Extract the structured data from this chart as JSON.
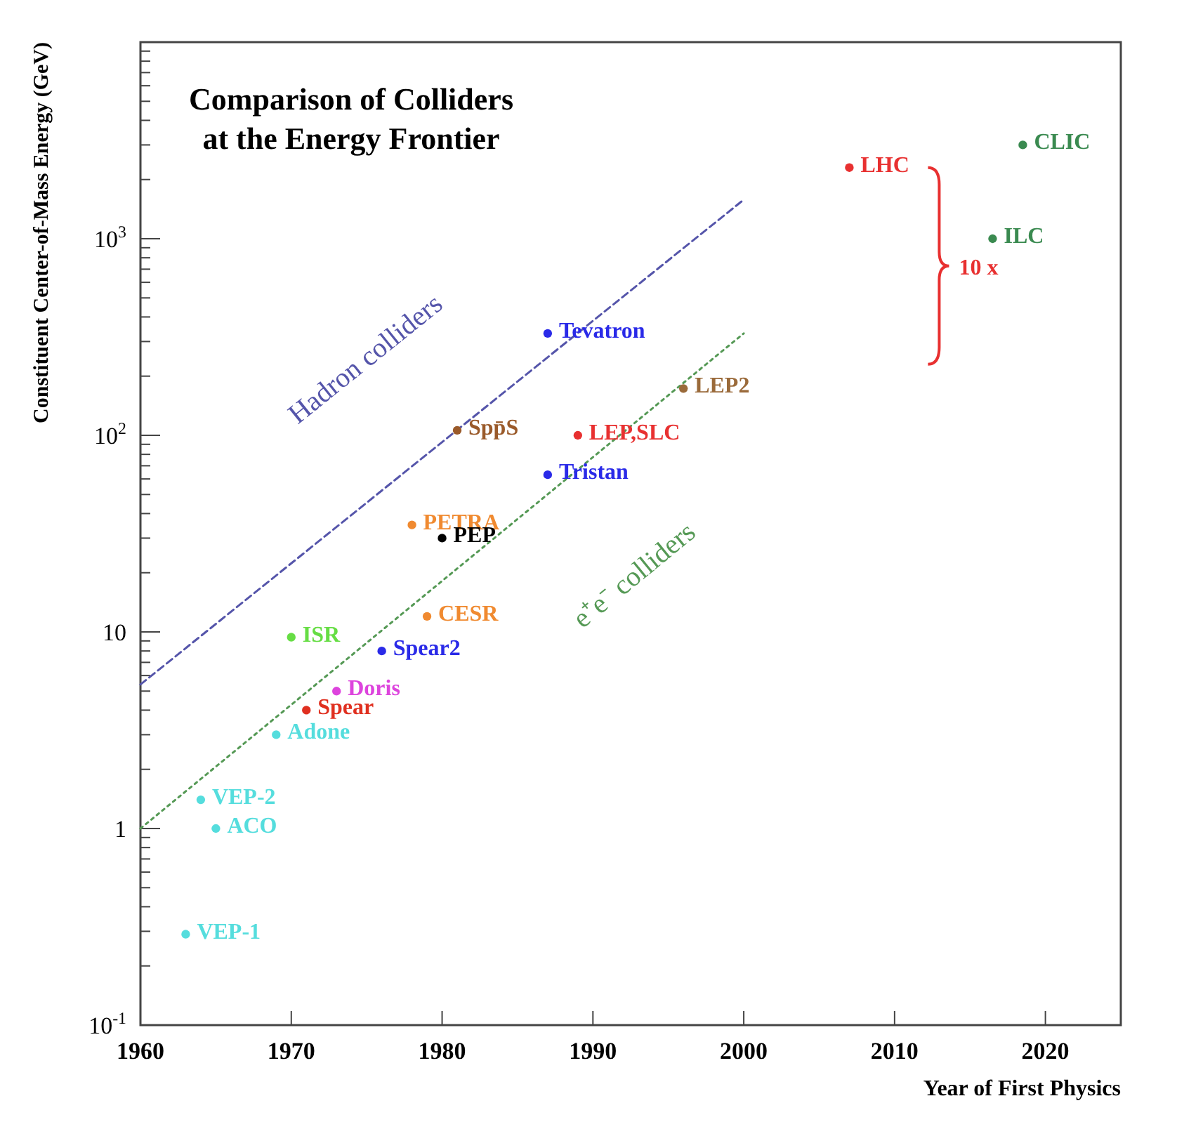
{
  "chart_data": {
    "type": "scatter",
    "title": "Comparison of Colliders\nat the Energy Frontier",
    "xlabel": "Year of First Physics",
    "ylabel": "Constituent Center-of-Mass Energy (GeV)",
    "log": "y",
    "grid": false,
    "marker": "circle",
    "xlim": [
      1960,
      2025
    ],
    "xticks": [
      1960,
      1970,
      1980,
      1990,
      2000,
      2010,
      2020
    ],
    "ylim": [
      0.1,
      10000
    ],
    "yticks": [
      {
        "value": 0.1,
        "label": "10$^{-1}$"
      },
      {
        "value": 0.2,
        "label": null
      },
      {
        "value": 0.3,
        "label": null
      },
      {
        "value": 0.4,
        "label": null
      },
      {
        "value": 0.5,
        "label": null
      },
      {
        "value": 0.6,
        "label": null
      },
      {
        "value": 0.7,
        "label": null
      },
      {
        "value": 0.8,
        "label": null
      },
      {
        "value": 0.9,
        "label": null
      },
      {
        "value": 1,
        "label": "1"
      },
      {
        "value": 2,
        "label": null
      },
      {
        "value": 3,
        "label": null
      },
      {
        "value": 4,
        "label": null
      },
      {
        "value": 5,
        "label": null
      },
      {
        "value": 6,
        "label": null
      },
      {
        "value": 7,
        "label": null
      },
      {
        "value": 8,
        "label": null
      },
      {
        "value": 9,
        "label": null
      },
      {
        "value": 10,
        "label": "10"
      },
      {
        "value": 20,
        "label": null
      },
      {
        "value": 30,
        "label": null
      },
      {
        "value": 40,
        "label": null
      },
      {
        "value": 50,
        "label": null
      },
      {
        "value": 60,
        "label": null
      },
      {
        "value": 70,
        "label": null
      },
      {
        "value": 80,
        "label": null
      },
      {
        "value": 90,
        "label": null
      },
      {
        "value": 100,
        "label": "10$^{2}$"
      },
      {
        "value": 200,
        "label": null
      },
      {
        "value": 300,
        "label": null
      },
      {
        "value": 400,
        "label": null
      },
      {
        "value": 500,
        "label": null
      },
      {
        "value": 600,
        "label": null
      },
      {
        "value": 700,
        "label": null
      },
      {
        "value": 800,
        "label": null
      },
      {
        "value": 900,
        "label": null
      },
      {
        "value": 1000,
        "label": "10$^{3}$"
      },
      {
        "value": 2000,
        "label": null
      },
      {
        "value": 3000,
        "label": null
      },
      {
        "value": 4000,
        "label": null
      },
      {
        "value": 5000,
        "label": null
      },
      {
        "value": 6000,
        "label": null
      },
      {
        "value": 7000,
        "label": null
      },
      {
        "value": 8000,
        "label": null
      },
      {
        "value": 9000,
        "label": null
      }
    ],
    "annotations": [
      "10 x"
    ],
    "series": [
      {
        "name": "Hadron colliders",
        "type": "line",
        "marker": "none",
        "line_style": "dashed",
        "color": "#5555aa",
        "x": [
          1960,
          2000
        ],
        "values": [
          5.4,
          1580
        ]
      },
      {
        "name": "e⁺e⁻ colliders",
        "type": "line",
        "marker": "none",
        "line_style": "dotted",
        "color": "#559955",
        "x": [
          1960,
          2000
        ],
        "values": [
          1,
          330
        ]
      },
      {
        "name": "LHC",
        "color": "#e83030",
        "x": [
          2007
        ],
        "values": [
          2300
        ]
      },
      {
        "name": "CLIC",
        "color": "#3a8a50",
        "x": [
          2018.5
        ],
        "values": [
          3000
        ]
      },
      {
        "name": "ILC",
        "color": "#3a8a50",
        "x": [
          2016.5
        ],
        "values": [
          1000
        ]
      },
      {
        "name": "Tevatron",
        "color": "#2a2ae8",
        "x": [
          1987
        ],
        "values": [
          330
        ]
      },
      {
        "name": "Spp̄S",
        "color": "#9a5a2a",
        "x": [
          1981
        ],
        "values": [
          106
        ]
      },
      {
        "name": "LEP2",
        "color": "#9a6a3a",
        "x": [
          1996
        ],
        "values": [
          173
        ]
      },
      {
        "name": "LEP,SLC",
        "color": "#e83030",
        "x": [
          1989
        ],
        "values": [
          100
        ]
      },
      {
        "name": "Tristan",
        "color": "#2a2ae8",
        "x": [
          1987
        ],
        "values": [
          63
        ]
      },
      {
        "name": "PETRA",
        "color": "#f08a30",
        "x": [
          1978
        ],
        "values": [
          35
        ]
      },
      {
        "name": "PEP",
        "color": "#000000",
        "x": [
          1980
        ],
        "values": [
          30
        ]
      },
      {
        "name": "CESR",
        "color": "#f08a30",
        "x": [
          1979
        ],
        "values": [
          12
        ]
      },
      {
        "name": "Spear2",
        "color": "#2a2ae8",
        "x": [
          1976
        ],
        "values": [
          8
        ]
      },
      {
        "name": "ISR",
        "color": "#66dd44",
        "x": [
          1970
        ],
        "values": [
          9.4
        ]
      },
      {
        "name": "Doris",
        "color": "#dd44dd",
        "x": [
          1973
        ],
        "values": [
          5
        ]
      },
      {
        "name": "Spear",
        "color": "#e03020",
        "x": [
          1971
        ],
        "values": [
          4
        ]
      },
      {
        "name": "Adone",
        "color": "#55dddd",
        "x": [
          1969
        ],
        "values": [
          3
        ]
      },
      {
        "name": "VEP-2",
        "color": "#55dddd",
        "x": [
          1964
        ],
        "values": [
          1.4
        ]
      },
      {
        "name": "ACO",
        "color": "#55dddd",
        "x": [
          1965
        ],
        "values": [
          1
        ]
      },
      {
        "name": "VEP-1",
        "color": "#55dddd",
        "x": [
          1963
        ],
        "values": [
          0.29
        ]
      }
    ]
  }
}
